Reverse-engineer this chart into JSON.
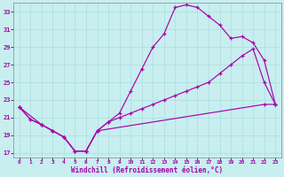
{
  "xlabel": "Windchill (Refroidissement éolien,°C)",
  "bg_color": "#c8eef0",
  "line_color": "#aa00aa",
  "xlim": [
    -0.5,
    23.5
  ],
  "ylim": [
    16.5,
    34.0
  ],
  "xticks": [
    0,
    1,
    2,
    3,
    4,
    5,
    6,
    7,
    8,
    9,
    10,
    11,
    12,
    13,
    14,
    15,
    16,
    17,
    18,
    19,
    20,
    21,
    22,
    23
  ],
  "yticks": [
    17,
    19,
    21,
    23,
    25,
    27,
    29,
    31,
    33
  ],
  "line1_x": [
    0,
    1,
    2,
    3,
    4,
    5,
    6,
    7,
    8,
    9,
    10,
    11,
    12,
    13,
    14,
    15,
    16,
    17,
    18,
    19,
    20,
    21,
    22,
    23
  ],
  "line1_y": [
    22.2,
    20.8,
    20.2,
    19.5,
    18.8,
    17.2,
    17.2,
    19.5,
    20.5,
    21.5,
    24.0,
    26.5,
    29.0,
    30.5,
    33.5,
    33.8,
    33.5,
    32.5,
    31.5,
    30.0,
    30.2,
    29.5,
    27.5,
    22.5
  ],
  "line2_x": [
    0,
    1,
    2,
    3,
    4,
    5,
    6,
    7,
    8,
    9,
    10,
    11,
    12,
    13,
    14,
    15,
    16,
    17,
    18,
    19,
    20,
    21,
    22,
    23
  ],
  "line2_y": [
    22.2,
    20.8,
    20.2,
    19.5,
    18.8,
    17.2,
    17.2,
    19.5,
    20.5,
    21.0,
    21.5,
    22.0,
    22.5,
    23.0,
    23.5,
    24.0,
    24.5,
    25.0,
    26.0,
    27.0,
    28.0,
    28.8,
    25.0,
    22.5
  ],
  "line3_x": [
    0,
    2,
    3,
    4,
    5,
    6,
    7,
    22,
    23
  ],
  "line3_y": [
    22.2,
    20.2,
    19.5,
    18.8,
    17.2,
    17.2,
    19.5,
    22.5,
    22.5
  ]
}
